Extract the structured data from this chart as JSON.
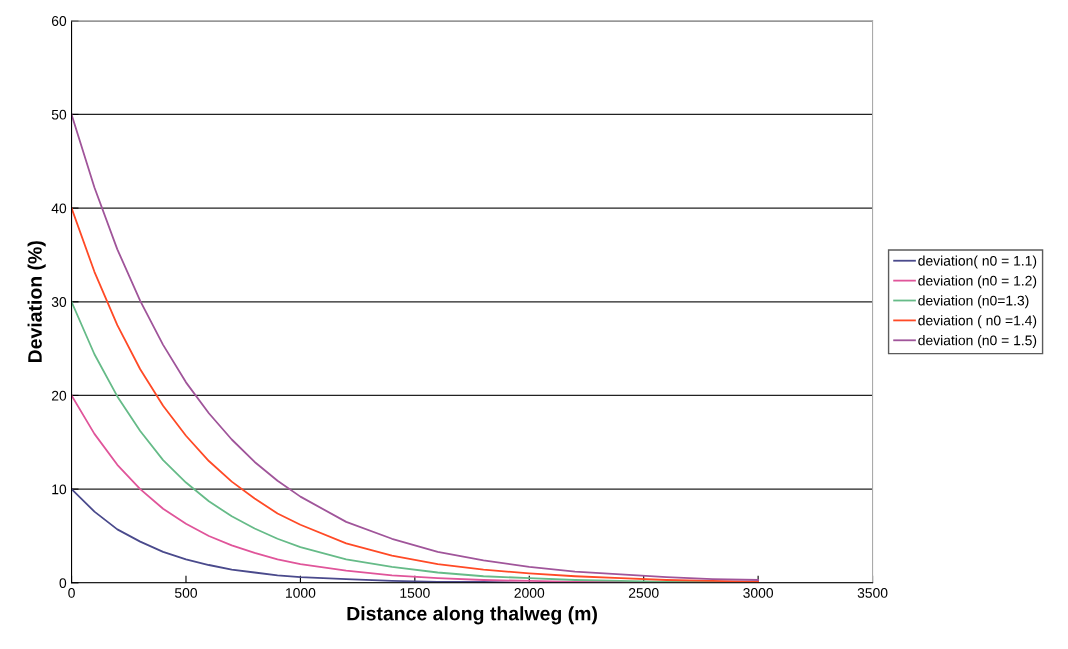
{
  "chart_data": {
    "type": "line",
    "xlabel": "Distance along thalweg (m)",
    "ylabel": "Deviation (%)",
    "x": [
      0,
      100,
      200,
      300,
      400,
      500,
      600,
      700,
      800,
      900,
      1000,
      1200,
      1400,
      1600,
      1800,
      2000,
      2200,
      2400,
      2600,
      2800,
      3000
    ],
    "series": [
      {
        "name": "deviation( n0 = 1.1)",
        "color": "#4a4a8c",
        "values": [
          10,
          7.6,
          5.7,
          4.4,
          3.3,
          2.5,
          1.9,
          1.4,
          1.1,
          0.8,
          0.6,
          0.4,
          0.2,
          0.1,
          0.1,
          0,
          0,
          0,
          null,
          null,
          null
        ]
      },
      {
        "name": "deviation (n0 = 1.2)",
        "color": "#e0559a",
        "values": [
          20,
          15.9,
          12.6,
          10,
          7.9,
          6.3,
          5,
          4,
          3.2,
          2.5,
          2,
          1.3,
          0.8,
          0.5,
          0.3,
          0.2,
          0.1,
          0.1,
          0.1,
          0,
          0
        ]
      },
      {
        "name": "deviation (n0=1.3)",
        "color": "#66bb88",
        "values": [
          30,
          24.4,
          19.9,
          16.2,
          13.1,
          10.7,
          8.7,
          7.1,
          5.8,
          4.7,
          3.8,
          2.5,
          1.7,
          1.1,
          0.7,
          0.5,
          0.3,
          0.2,
          0.1,
          0.1,
          0.1
        ]
      },
      {
        "name": "deviation ( n0 =1.4)",
        "color": "#ff4a26",
        "values": [
          40,
          33.2,
          27.5,
          22.8,
          18.9,
          15.7,
          13,
          10.8,
          9,
          7.4,
          6.2,
          4.2,
          2.9,
          2,
          1.4,
          1,
          0.7,
          0.5,
          0.3,
          0.2,
          0.1
        ]
      },
      {
        "name": "deviation (n0 = 1.5)",
        "color": "#a0559a",
        "values": [
          50,
          42.2,
          35.6,
          30.1,
          25.4,
          21.4,
          18.1,
          15.3,
          12.9,
          10.9,
          9.2,
          6.5,
          4.7,
          3.3,
          2.4,
          1.7,
          1.2,
          0.9,
          0.6,
          0.4,
          0.3
        ]
      }
    ],
    "xlim": [
      0,
      3500
    ],
    "xticks": [
      0,
      500,
      1000,
      1500,
      2000,
      2500,
      3000,
      3500
    ],
    "ylim": [
      0,
      60
    ],
    "yticks": [
      0,
      10,
      20,
      30,
      40,
      50,
      60
    ],
    "grid": "y",
    "legend": "right",
    "marker": "none",
    "line_style": "solid"
  }
}
